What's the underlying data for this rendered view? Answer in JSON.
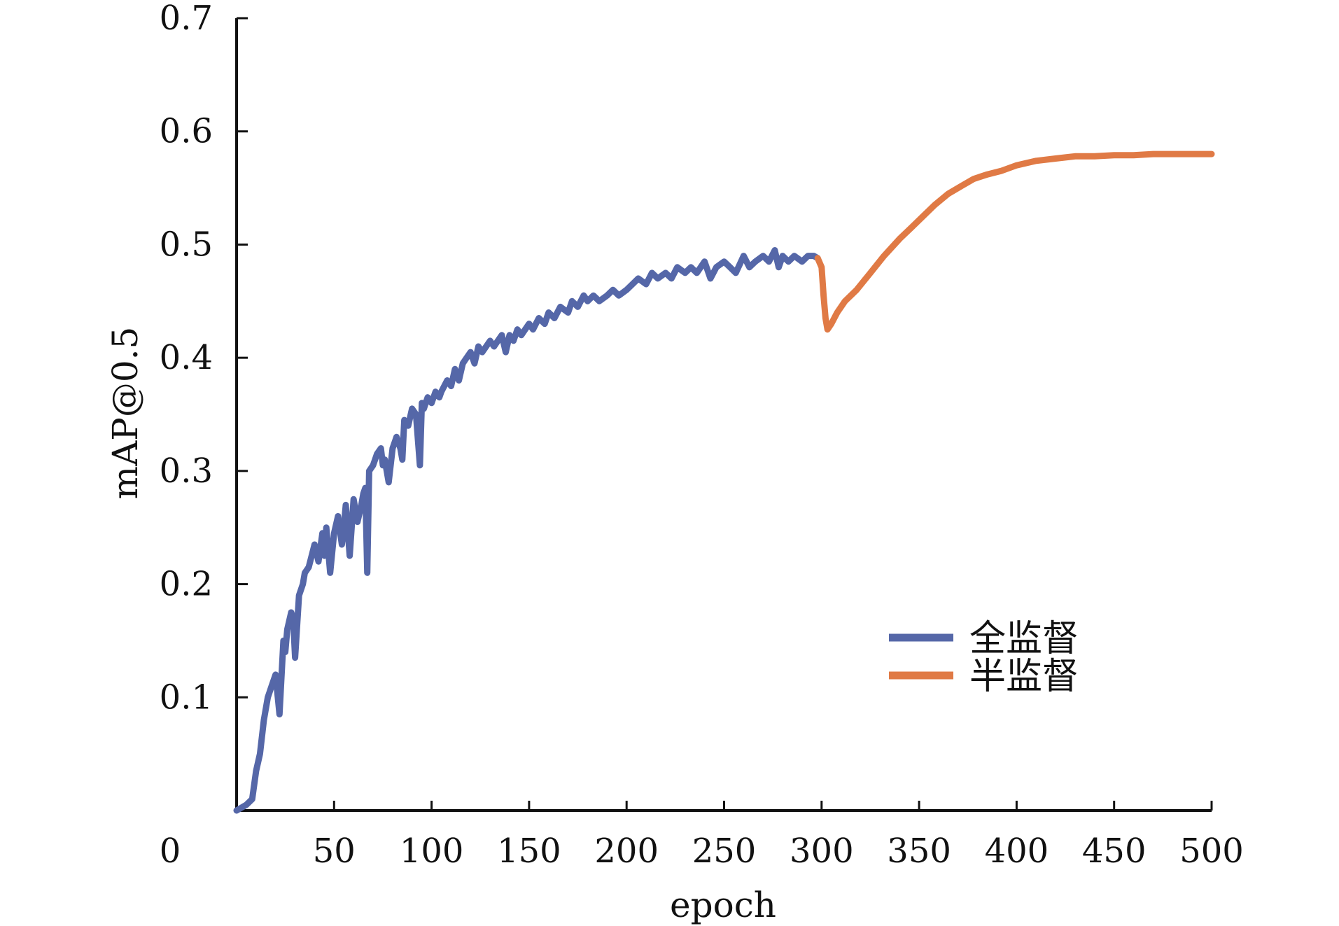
{
  "chart_data": {
    "type": "line",
    "xlabel": "epoch",
    "ylabel": "mAP@0.5",
    "xlim": [
      0,
      500
    ],
    "ylim": [
      0,
      0.7
    ],
    "origin_label": "0",
    "x_ticks": [
      50,
      100,
      150,
      200,
      250,
      300,
      350,
      400,
      450,
      500
    ],
    "x_tick_labels": [
      "50",
      "100",
      "150",
      "200",
      "250",
      "300",
      "350",
      "400",
      "450",
      "500"
    ],
    "y_ticks": [
      0.1,
      0.2,
      0.3,
      0.4,
      0.5,
      0.6,
      0.7
    ],
    "y_tick_labels": [
      "0.1",
      "0.2",
      "0.3",
      "0.4",
      "0.5",
      "0.6",
      "0.7"
    ],
    "grid": false,
    "legend_position": "lower-right",
    "series": [
      {
        "name": "全监督",
        "color": "#5567a8",
        "x": [
          0,
          5,
          8,
          10,
          12,
          14,
          16,
          18,
          20,
          22,
          24,
          25,
          26,
          28,
          29,
          30,
          32,
          34,
          35,
          37,
          40,
          42,
          44,
          45,
          46,
          48,
          50,
          52,
          54,
          55,
          56,
          58,
          60,
          62,
          64,
          65,
          66,
          67,
          68,
          70,
          72,
          74,
          75,
          76,
          78,
          80,
          82,
          84,
          85,
          86,
          88,
          90,
          92,
          94,
          95,
          96,
          98,
          100,
          102,
          104,
          105,
          108,
          110,
          112,
          114,
          116,
          118,
          120,
          122,
          124,
          126,
          128,
          130,
          132,
          134,
          136,
          138,
          140,
          142,
          144,
          146,
          148,
          150,
          152,
          155,
          158,
          160,
          163,
          166,
          170,
          172,
          175,
          178,
          180,
          183,
          186,
          190,
          193,
          196,
          200,
          203,
          206,
          210,
          213,
          216,
          220,
          223,
          226,
          230,
          233,
          236,
          240,
          243,
          246,
          250,
          253,
          256,
          260,
          263,
          266,
          270,
          273,
          276,
          278,
          280,
          283,
          286,
          290,
          293,
          296,
          298
        ],
        "y": [
          0.0,
          0.005,
          0.01,
          0.035,
          0.05,
          0.08,
          0.1,
          0.11,
          0.12,
          0.085,
          0.15,
          0.14,
          0.16,
          0.175,
          0.17,
          0.135,
          0.19,
          0.2,
          0.21,
          0.215,
          0.235,
          0.22,
          0.245,
          0.225,
          0.25,
          0.21,
          0.245,
          0.26,
          0.235,
          0.25,
          0.27,
          0.225,
          0.275,
          0.255,
          0.27,
          0.28,
          0.285,
          0.21,
          0.3,
          0.305,
          0.315,
          0.32,
          0.305,
          0.31,
          0.29,
          0.32,
          0.33,
          0.32,
          0.31,
          0.345,
          0.34,
          0.355,
          0.35,
          0.305,
          0.36,
          0.355,
          0.365,
          0.36,
          0.37,
          0.365,
          0.37,
          0.38,
          0.375,
          0.39,
          0.38,
          0.395,
          0.4,
          0.405,
          0.395,
          0.41,
          0.405,
          0.41,
          0.415,
          0.41,
          0.415,
          0.42,
          0.405,
          0.42,
          0.415,
          0.425,
          0.42,
          0.425,
          0.43,
          0.425,
          0.435,
          0.43,
          0.44,
          0.435,
          0.445,
          0.44,
          0.45,
          0.445,
          0.455,
          0.45,
          0.455,
          0.45,
          0.455,
          0.46,
          0.455,
          0.46,
          0.465,
          0.47,
          0.465,
          0.475,
          0.47,
          0.475,
          0.47,
          0.48,
          0.475,
          0.48,
          0.475,
          0.485,
          0.47,
          0.48,
          0.485,
          0.48,
          0.475,
          0.49,
          0.48,
          0.485,
          0.49,
          0.485,
          0.495,
          0.48,
          0.49,
          0.485,
          0.49,
          0.485,
          0.49,
          0.49,
          0.488
        ]
      },
      {
        "name": "半监督",
        "color": "#e07a45",
        "x": [
          298,
          300,
          301,
          302,
          303,
          305,
          308,
          312,
          318,
          325,
          332,
          340,
          346,
          352,
          358,
          365,
          372,
          378,
          385,
          392,
          400,
          405,
          410,
          420,
          430,
          440,
          450,
          460,
          470,
          480,
          490,
          500
        ],
        "y": [
          0.488,
          0.48,
          0.455,
          0.435,
          0.425,
          0.43,
          0.44,
          0.45,
          0.46,
          0.475,
          0.49,
          0.505,
          0.515,
          0.525,
          0.535,
          0.545,
          0.552,
          0.558,
          0.562,
          0.565,
          0.57,
          0.572,
          0.574,
          0.576,
          0.578,
          0.578,
          0.579,
          0.579,
          0.58,
          0.58,
          0.58,
          0.58
        ]
      }
    ]
  }
}
